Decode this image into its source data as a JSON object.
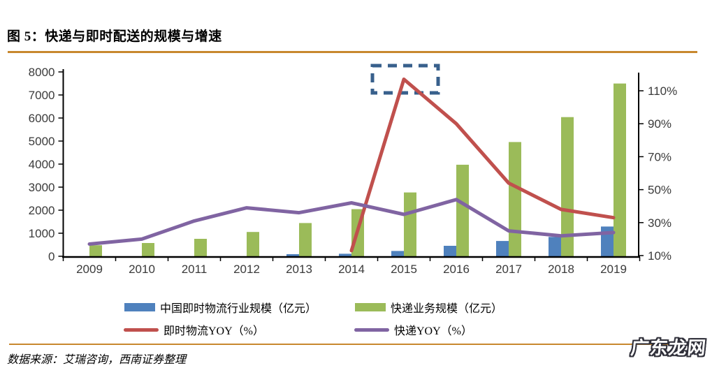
{
  "page": {
    "title_label": "图 5：快递与即时配送的规模与增速",
    "source_note": "数据来源：艾瑞咨询，西南证券整理",
    "watermark": "广东龙网",
    "rule_color": "#C8882E"
  },
  "chart_data": {
    "type": "bar+line",
    "categories": [
      "2009",
      "2010",
      "2011",
      "2012",
      "2013",
      "2014",
      "2015",
      "2016",
      "2017",
      "2018",
      "2019"
    ],
    "series": [
      {
        "name": "中国即时物流行业规模（亿元）",
        "type": "bar",
        "axis": "left",
        "color": "#4F81BD",
        "values": [
          null,
          null,
          null,
          null,
          90,
          110,
          230,
          455,
          665,
          840,
          1290
        ]
      },
      {
        "name": "快递业务规模（亿元）",
        "type": "bar",
        "axis": "left",
        "color": "#9BBB59",
        "values": [
          479,
          575,
          758,
          1055,
          1442,
          2045,
          2770,
          3974,
          4957,
          6038,
          7498
        ]
      },
      {
        "name": "即时物流YOY（%）",
        "type": "line",
        "axis": "right",
        "color": "#C0504D",
        "values": [
          null,
          null,
          null,
          null,
          null,
          13,
          117,
          90,
          54,
          38,
          33
        ]
      },
      {
        "name": "快递YOY（%）",
        "type": "line",
        "axis": "right",
        "color": "#8064A2",
        "values": [
          17,
          20,
          31,
          39,
          36,
          42,
          35,
          44,
          25,
          22,
          24
        ]
      }
    ],
    "left_axis": {
      "ticks": [
        "0",
        "1000",
        "2000",
        "3000",
        "4000",
        "5000",
        "6000",
        "7000",
        "8000"
      ],
      "range": [
        0,
        8000
      ]
    },
    "right_axis": {
      "ticks": [
        "10%",
        "30%",
        "50%",
        "70%",
        "90%",
        "110%"
      ],
      "range": [
        10,
        110
      ]
    },
    "grid": false,
    "legend_position": "bottom",
    "annotation": {
      "shape": "dashed-rect",
      "highlights": "2015 即时物流YOY 峰值",
      "color": "#38608C"
    }
  }
}
